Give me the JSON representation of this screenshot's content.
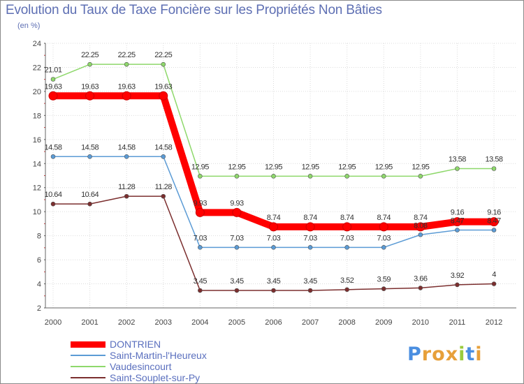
{
  "title": "Evolution du Taux de Taxe Foncière sur les Propriétés Non Bâties",
  "unit_label": "(en %)",
  "logo": {
    "letters": [
      "P",
      "r",
      "o",
      "x",
      "i",
      "t",
      "i"
    ],
    "colors": [
      "#4a8ee0",
      "#e7a03a",
      "#e7a03a",
      "#e7a03a",
      "#9acb3c",
      "#4a8ee0",
      "#e7a03a"
    ]
  },
  "chart_data": {
    "type": "line",
    "title": "Evolution du Taux de Taxe Foncière sur les Propriétés Non Bâties",
    "ylabel": "(en %)",
    "xlabel": "",
    "x": [
      "2000",
      "2001",
      "2002",
      "2003",
      "2004",
      "2005",
      "2006",
      "2007",
      "2008",
      "2009",
      "2010",
      "2011",
      "2012"
    ],
    "ylim": [
      2,
      24
    ],
    "yticks": [
      "2",
      "4",
      "6",
      "8",
      "10",
      "12",
      "14",
      "16",
      "18",
      "20",
      "22",
      "24"
    ],
    "grid": true,
    "series": [
      {
        "name": "DONTRIEN",
        "color": "#ff0000",
        "values": [
          19.63,
          19.63,
          19.63,
          19.63,
          9.93,
          9.93,
          8.74,
          8.74,
          8.74,
          8.74,
          8.74,
          9.16,
          9.16
        ],
        "labels": [
          "19.63",
          "19.63",
          "19.63",
          "19.63",
          "9.93",
          "9.93",
          "8.74",
          "8.74",
          "8.74",
          "8.74",
          "8.74",
          "9.16",
          "9.16"
        ]
      },
      {
        "name": "Saint-Martin-l'Heureux",
        "color": "#5b9bd5",
        "values": [
          14.58,
          14.58,
          14.58,
          14.58,
          7.03,
          7.03,
          7.03,
          7.03,
          7.03,
          7.03,
          8.08,
          8.47,
          8.47
        ],
        "labels": [
          "14.58",
          "14.58",
          "14.58",
          "14.58",
          "7.03",
          "7.03",
          "7.03",
          "7.03",
          "7.03",
          "7.03",
          "8.08",
          "8.47",
          "8.47"
        ]
      },
      {
        "name": "Vaudesincourt",
        "color": "#8ed86b",
        "values": [
          21.01,
          22.25,
          22.25,
          22.25,
          12.95,
          12.95,
          12.95,
          12.95,
          12.95,
          12.95,
          12.95,
          13.58,
          13.58
        ],
        "labels": [
          "21.01",
          "22.25",
          "22.25",
          "22.25",
          "12.95",
          "12.95",
          "12.95",
          "12.95",
          "12.95",
          "12.95",
          "12.95",
          "13.58",
          "13.58"
        ]
      },
      {
        "name": "Saint-Souplet-sur-Py",
        "color": "#7b2e2e",
        "values": [
          10.64,
          10.64,
          11.28,
          11.28,
          3.45,
          3.45,
          3.45,
          3.45,
          3.52,
          3.59,
          3.66,
          3.92,
          4
        ],
        "labels": [
          "10.64",
          "10.64",
          "11.28",
          "11.28",
          "3.45",
          "3.45",
          "3.45",
          "3.45",
          "3.52",
          "3.59",
          "3.66",
          "3.92",
          "4"
        ]
      }
    ]
  }
}
